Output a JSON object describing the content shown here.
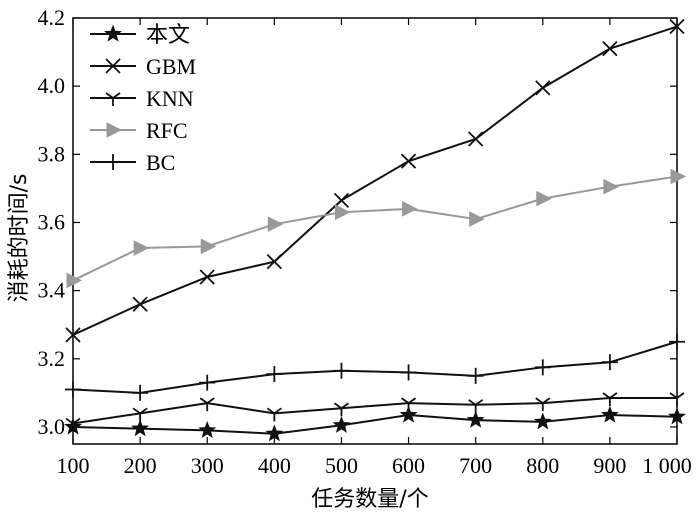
{
  "chart_data": {
    "type": "line",
    "title": "",
    "xlabel": "任务数量/个",
    "ylabel": "消耗的时间/s",
    "x": [
      100,
      200,
      300,
      400,
      500,
      600,
      700,
      800,
      900,
      1000
    ],
    "x_tick_labels": [
      "100",
      "200",
      "300",
      "400",
      "500",
      "600",
      "700",
      "800",
      "900",
      "1 000"
    ],
    "xlim": [
      100,
      1000
    ],
    "ylim": [
      2.95,
      4.2
    ],
    "y_ticks": [
      3.0,
      3.2,
      3.4,
      3.6,
      3.8,
      4.0,
      4.2
    ],
    "y_tick_labels": [
      "3.0",
      "3.2",
      "3.4",
      "3.6",
      "3.8",
      "4.0",
      "4.2"
    ],
    "grid": false,
    "legend_position": "top-left",
    "series": [
      {
        "name": "本文",
        "marker": "star",
        "color": "#111111",
        "values": [
          3.0,
          2.995,
          2.99,
          2.98,
          3.005,
          3.035,
          3.02,
          3.015,
          3.035,
          3.03
        ]
      },
      {
        "name": "GBM",
        "marker": "x",
        "color": "#111111",
        "values": [
          3.27,
          3.36,
          3.44,
          3.485,
          3.665,
          3.78,
          3.845,
          3.995,
          4.11,
          4.175
        ]
      },
      {
        "name": "KNN",
        "marker": "tri-down",
        "color": "#111111",
        "values": [
          3.01,
          3.04,
          3.07,
          3.04,
          3.055,
          3.07,
          3.065,
          3.07,
          3.085,
          3.085
        ]
      },
      {
        "name": "RFC",
        "marker": "triangle-right",
        "color": "#999999",
        "values": [
          3.43,
          3.525,
          3.53,
          3.595,
          3.63,
          3.64,
          3.61,
          3.67,
          3.705,
          3.735
        ]
      },
      {
        "name": "BC",
        "marker": "plus",
        "color": "#111111",
        "values": [
          3.11,
          3.1,
          3.13,
          3.155,
          3.165,
          3.16,
          3.15,
          3.175,
          3.19,
          3.25
        ]
      }
    ]
  }
}
